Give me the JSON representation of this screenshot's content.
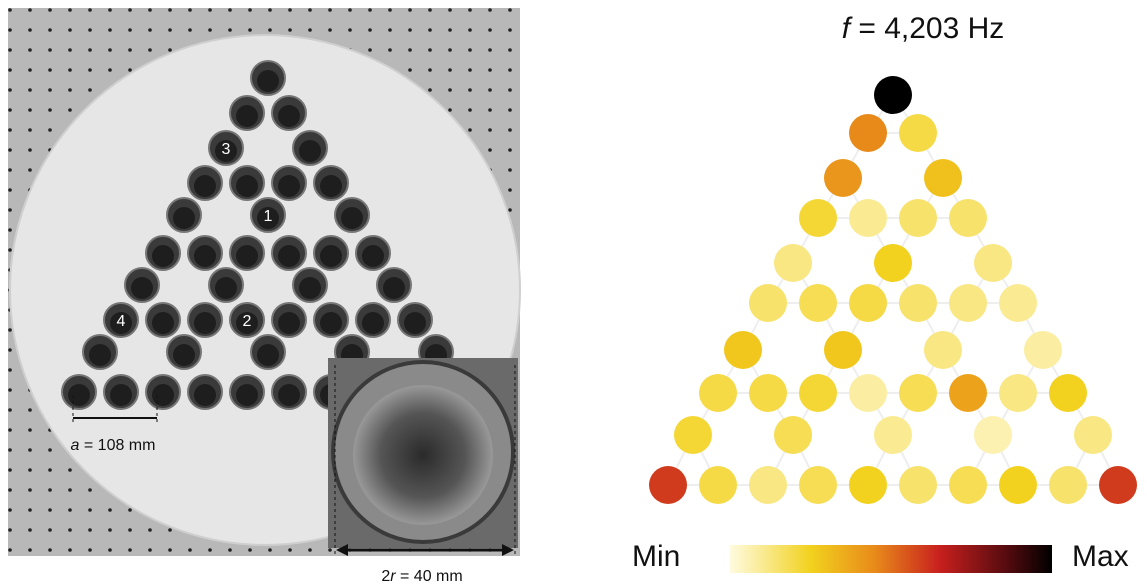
{
  "photo": {
    "labels": [
      "1",
      "2",
      "3",
      "4"
    ],
    "spacing": {
      "symbol": "a",
      "text": "= 108 mm"
    },
    "inset": {
      "prefix": "2",
      "symbol": "r",
      "text": "= 40 mm"
    }
  },
  "heatmap": {
    "frequency": {
      "symbol": "f",
      "text": "= 4,203 Hz"
    },
    "intensity": [
      1.0,
      0.45,
      0.2,
      0.42,
      0.3,
      0.22,
      0.1,
      0.15,
      0.15,
      0.12,
      0.25,
      0.12,
      0.15,
      0.18,
      0.2,
      0.15,
      0.12,
      0.1,
      0.28,
      0.28,
      0.12,
      0.08,
      0.2,
      0.2,
      0.22,
      0.08,
      0.18,
      0.38,
      0.12,
      0.25,
      0.22,
      0.18,
      0.1,
      0.06,
      0.12,
      0.6,
      0.2,
      0.12,
      0.18,
      0.25,
      0.15,
      0.18,
      0.25,
      0.15,
      0.6
    ],
    "colorbar": {
      "min": "Min",
      "max": "Max"
    }
  }
}
